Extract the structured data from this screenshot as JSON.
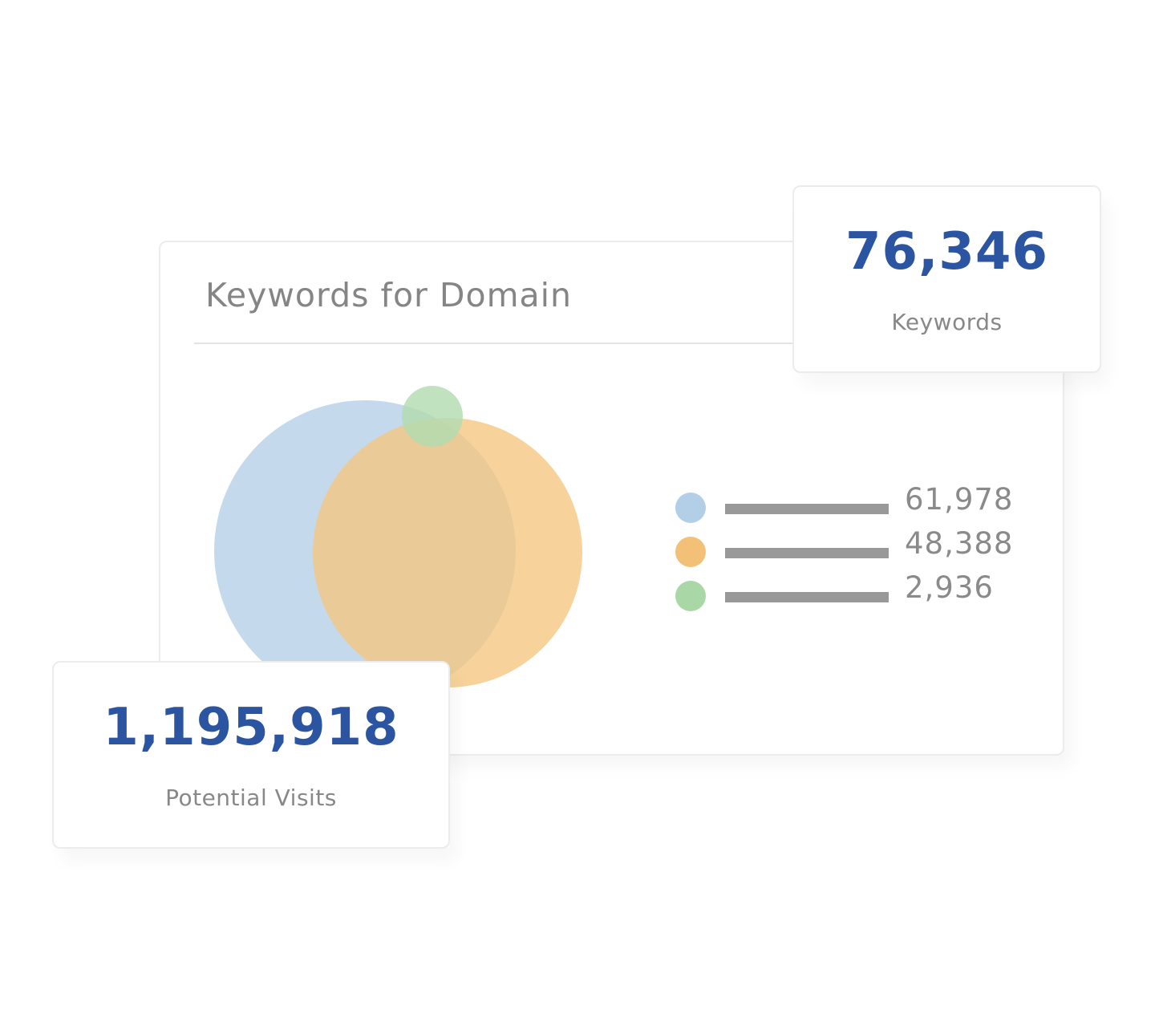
{
  "main_card": {
    "title": "Keywords for Domain"
  },
  "venn": {
    "sets": [
      {
        "color": "#c5d9ec"
      },
      {
        "color": "#f5c77f"
      },
      {
        "color": "#b2dcb0"
      }
    ]
  },
  "legend": {
    "items": [
      {
        "color": "#b3cfe7",
        "value": "61,978"
      },
      {
        "color": "#f3c077",
        "value": "48,388"
      },
      {
        "color": "#a9d7a6",
        "value": "2,936"
      }
    ]
  },
  "stats": {
    "keywords": {
      "value": "76,346",
      "label": "Keywords"
    },
    "visits": {
      "value": "1,195,918",
      "label": "Potential Visits"
    }
  },
  "colors": {
    "accent": "#2c55a1",
    "muted_text": "#858585",
    "bar": "#999999"
  }
}
